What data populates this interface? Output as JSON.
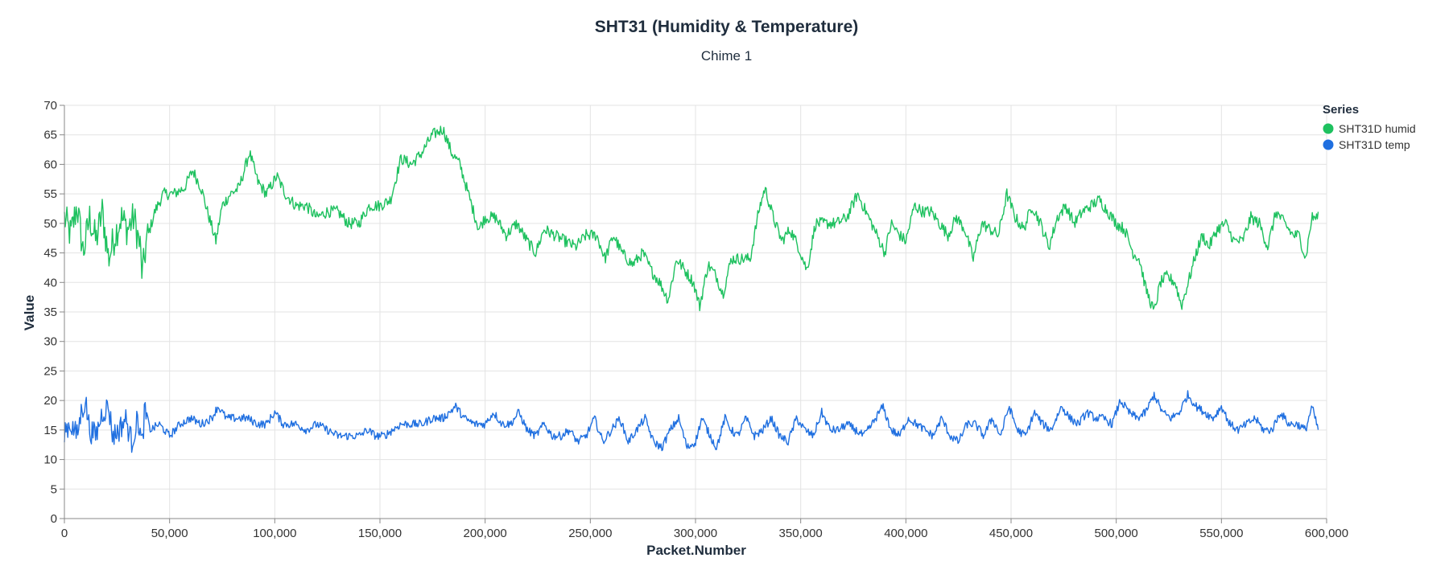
{
  "chart_data": {
    "type": "line",
    "title": "SHT31 (Humidity & Temperature)",
    "subtitle": "Chime 1",
    "xlabel": "Packet.Number",
    "ylabel": "Value",
    "xlim": [
      0,
      600000
    ],
    "ylim": [
      0,
      70
    ],
    "x_ticks": [
      0,
      50000,
      100000,
      150000,
      200000,
      250000,
      300000,
      350000,
      400000,
      450000,
      500000,
      550000,
      600000
    ],
    "x_tick_labels": [
      "0",
      "50,000",
      "100,000",
      "150,000",
      "200,000",
      "250,000",
      "300,000",
      "350,000",
      "400,000",
      "450,000",
      "500,000",
      "550,000",
      "600,000"
    ],
    "y_ticks": [
      0,
      5,
      10,
      15,
      20,
      25,
      30,
      35,
      40,
      45,
      50,
      55,
      60,
      65,
      70
    ],
    "y_tick_labels": [
      "0",
      "5",
      "10",
      "15",
      "20",
      "25",
      "30",
      "35",
      "40",
      "45",
      "50",
      "55",
      "60",
      "65",
      "70"
    ],
    "grid": true,
    "legend": {
      "title": "Series",
      "position": "top-right"
    },
    "series": [
      {
        "name": "SHT31D humid",
        "color": "#1ec15f",
        "noise": 1.0,
        "points": [
          [
            0,
            51
          ],
          [
            3000,
            48
          ],
          [
            6000,
            53
          ],
          [
            9000,
            45
          ],
          [
            12000,
            51
          ],
          [
            15000,
            47
          ],
          [
            18000,
            52
          ],
          [
            21000,
            44
          ],
          [
            24000,
            48
          ],
          [
            27000,
            51
          ],
          [
            30000,
            49
          ],
          [
            33000,
            51
          ],
          [
            36000,
            46
          ],
          [
            37000,
            41
          ],
          [
            39000,
            47
          ],
          [
            43000,
            52
          ],
          [
            47000,
            55
          ],
          [
            52000,
            55
          ],
          [
            57000,
            56
          ],
          [
            61000,
            59
          ],
          [
            65000,
            56
          ],
          [
            68000,
            52
          ],
          [
            72000,
            47
          ],
          [
            75000,
            53
          ],
          [
            79000,
            55
          ],
          [
            83000,
            56
          ],
          [
            88000,
            62
          ],
          [
            92000,
            57
          ],
          [
            96000,
            55
          ],
          [
            101000,
            58
          ],
          [
            105000,
            55
          ],
          [
            110000,
            53
          ],
          [
            115000,
            53
          ],
          [
            120000,
            51
          ],
          [
            125000,
            52
          ],
          [
            130000,
            52
          ],
          [
            135000,
            50
          ],
          [
            140000,
            50
          ],
          [
            145000,
            53
          ],
          [
            150000,
            53
          ],
          [
            155000,
            54
          ],
          [
            160000,
            61
          ],
          [
            165000,
            60
          ],
          [
            170000,
            62
          ],
          [
            175000,
            65
          ],
          [
            180000,
            66
          ],
          [
            184000,
            62
          ],
          [
            188000,
            60
          ],
          [
            192000,
            55
          ],
          [
            197000,
            49
          ],
          [
            200000,
            51
          ],
          [
            205000,
            51
          ],
          [
            210000,
            48
          ],
          [
            215000,
            50
          ],
          [
            220000,
            47
          ],
          [
            224000,
            45
          ],
          [
            228000,
            49
          ],
          [
            233000,
            48
          ],
          [
            238000,
            47
          ],
          [
            243000,
            46
          ],
          [
            248000,
            48
          ],
          [
            253000,
            48
          ],
          [
            257000,
            44
          ],
          [
            261000,
            48
          ],
          [
            265000,
            45
          ],
          [
            270000,
            43
          ],
          [
            275000,
            45
          ],
          [
            279000,
            42
          ],
          [
            283000,
            40
          ],
          [
            287000,
            37
          ],
          [
            291000,
            44
          ],
          [
            295000,
            42
          ],
          [
            299000,
            40
          ],
          [
            302000,
            36
          ],
          [
            306000,
            43
          ],
          [
            310000,
            41
          ],
          [
            313000,
            38
          ],
          [
            317000,
            44
          ],
          [
            321000,
            44
          ],
          [
            326000,
            44
          ],
          [
            330000,
            52
          ],
          [
            333000,
            56
          ],
          [
            337000,
            51
          ],
          [
            341000,
            47
          ],
          [
            345000,
            49
          ],
          [
            349000,
            46
          ],
          [
            353000,
            42
          ],
          [
            357000,
            50
          ],
          [
            362000,
            50
          ],
          [
            367000,
            50
          ],
          [
            372000,
            51
          ],
          [
            377000,
            55
          ],
          [
            381000,
            52
          ],
          [
            385000,
            49
          ],
          [
            390000,
            45
          ],
          [
            393000,
            50
          ],
          [
            397000,
            48
          ],
          [
            400000,
            47
          ],
          [
            404000,
            53
          ],
          [
            408000,
            52
          ],
          [
            412000,
            52
          ],
          [
            416000,
            50
          ],
          [
            420000,
            48
          ],
          [
            424000,
            51
          ],
          [
            428000,
            49
          ],
          [
            432000,
            44
          ],
          [
            436000,
            50
          ],
          [
            440000,
            49
          ],
          [
            444000,
            48
          ],
          [
            448000,
            55
          ],
          [
            452000,
            51
          ],
          [
            456000,
            49
          ],
          [
            460000,
            53
          ],
          [
            464000,
            50
          ],
          [
            468000,
            46
          ],
          [
            472000,
            51
          ],
          [
            476000,
            53
          ],
          [
            480000,
            50
          ],
          [
            484000,
            52
          ],
          [
            488000,
            53
          ],
          [
            492000,
            54
          ],
          [
            496000,
            52
          ],
          [
            500000,
            50
          ],
          [
            504000,
            49
          ],
          [
            508000,
            45
          ],
          [
            511000,
            44
          ],
          [
            514000,
            39
          ],
          [
            518000,
            35
          ],
          [
            521000,
            40
          ],
          [
            524000,
            41
          ],
          [
            528000,
            40
          ],
          [
            531000,
            36
          ],
          [
            535000,
            41
          ],
          [
            538000,
            45
          ],
          [
            541000,
            48
          ],
          [
            544000,
            46
          ],
          [
            548000,
            49
          ],
          [
            552000,
            50
          ],
          [
            556000,
            47
          ],
          [
            560000,
            47
          ],
          [
            564000,
            51
          ],
          [
            568000,
            50
          ],
          [
            572000,
            46
          ],
          [
            576000,
            52
          ],
          [
            580000,
            50
          ],
          [
            584000,
            48
          ],
          [
            587000,
            48
          ],
          [
            590000,
            44
          ],
          [
            593000,
            51
          ],
          [
            596000,
            51
          ]
        ]
      },
      {
        "name": "SHT31D temp",
        "color": "#1f6fe0",
        "noise": 0.7,
        "points": [
          [
            0,
            15
          ],
          [
            3000,
            16
          ],
          [
            6000,
            14
          ],
          [
            8000,
            18
          ],
          [
            10000,
            20
          ],
          [
            12000,
            15
          ],
          [
            15000,
            14
          ],
          [
            18000,
            18
          ],
          [
            21000,
            19
          ],
          [
            23000,
            14
          ],
          [
            26000,
            15
          ],
          [
            29000,
            17
          ],
          [
            32000,
            13
          ],
          [
            35000,
            17
          ],
          [
            37000,
            12
          ],
          [
            38000,
            18
          ],
          [
            41000,
            15
          ],
          [
            45000,
            16
          ],
          [
            50000,
            14
          ],
          [
            55000,
            16
          ],
          [
            60000,
            17
          ],
          [
            65000,
            16
          ],
          [
            70000,
            17
          ],
          [
            73000,
            19
          ],
          [
            77000,
            17
          ],
          [
            82000,
            17
          ],
          [
            87000,
            17
          ],
          [
            92000,
            16
          ],
          [
            96000,
            16
          ],
          [
            100000,
            18
          ],
          [
            104000,
            16
          ],
          [
            110000,
            16
          ],
          [
            115000,
            15
          ],
          [
            120000,
            16
          ],
          [
            125000,
            15
          ],
          [
            130000,
            14
          ],
          [
            135000,
            14
          ],
          [
            140000,
            14
          ],
          [
            144000,
            15
          ],
          [
            148000,
            14
          ],
          [
            152000,
            14
          ],
          [
            156000,
            15
          ],
          [
            160000,
            16
          ],
          [
            165000,
            16
          ],
          [
            170000,
            16
          ],
          [
            175000,
            17
          ],
          [
            180000,
            17
          ],
          [
            186000,
            19
          ],
          [
            190000,
            17
          ],
          [
            195000,
            16
          ],
          [
            200000,
            16
          ],
          [
            204000,
            18
          ],
          [
            208000,
            16
          ],
          [
            212000,
            16
          ],
          [
            216000,
            18
          ],
          [
            220000,
            15
          ],
          [
            224000,
            14
          ],
          [
            228000,
            16
          ],
          [
            232000,
            14
          ],
          [
            236000,
            14
          ],
          [
            240000,
            15
          ],
          [
            244000,
            13
          ],
          [
            248000,
            14
          ],
          [
            252000,
            17
          ],
          [
            256000,
            13
          ],
          [
            260000,
            15
          ],
          [
            264000,
            17
          ],
          [
            268000,
            13
          ],
          [
            272000,
            15
          ],
          [
            276000,
            17
          ],
          [
            280000,
            13
          ],
          [
            284000,
            12
          ],
          [
            288000,
            15
          ],
          [
            292000,
            17
          ],
          [
            296000,
            12
          ],
          [
            300000,
            13
          ],
          [
            303000,
            17
          ],
          [
            307000,
            14
          ],
          [
            310000,
            12
          ],
          [
            314000,
            17
          ],
          [
            317000,
            15
          ],
          [
            320000,
            14
          ],
          [
            324000,
            17
          ],
          [
            328000,
            14
          ],
          [
            332000,
            15
          ],
          [
            336000,
            17
          ],
          [
            340000,
            14
          ],
          [
            344000,
            13
          ],
          [
            348000,
            17
          ],
          [
            352000,
            15
          ],
          [
            356000,
            14
          ],
          [
            360000,
            18
          ],
          [
            364000,
            15
          ],
          [
            368000,
            15
          ],
          [
            372000,
            16
          ],
          [
            376000,
            15
          ],
          [
            380000,
            14
          ],
          [
            384000,
            16
          ],
          [
            389000,
            19
          ],
          [
            393000,
            15
          ],
          [
            397000,
            14
          ],
          [
            401000,
            17
          ],
          [
            405000,
            16
          ],
          [
            409000,
            15
          ],
          [
            413000,
            14
          ],
          [
            417000,
            17
          ],
          [
            421000,
            14
          ],
          [
            425000,
            13
          ],
          [
            429000,
            16
          ],
          [
            433000,
            16
          ],
          [
            437000,
            14
          ],
          [
            441000,
            17
          ],
          [
            445000,
            14
          ],
          [
            449000,
            19
          ],
          [
            453000,
            15
          ],
          [
            457000,
            14
          ],
          [
            461000,
            18
          ],
          [
            465000,
            16
          ],
          [
            469000,
            15
          ],
          [
            474000,
            19
          ],
          [
            478000,
            17
          ],
          [
            482000,
            16
          ],
          [
            486000,
            18
          ],
          [
            490000,
            17
          ],
          [
            494000,
            17
          ],
          [
            498000,
            16
          ],
          [
            502000,
            20
          ],
          [
            506000,
            18
          ],
          [
            510000,
            17
          ],
          [
            514000,
            18
          ],
          [
            518000,
            21
          ],
          [
            522000,
            18
          ],
          [
            526000,
            17
          ],
          [
            530000,
            18
          ],
          [
            534000,
            21
          ],
          [
            538000,
            19
          ],
          [
            542000,
            18
          ],
          [
            546000,
            17
          ],
          [
            550000,
            19
          ],
          [
            554000,
            16
          ],
          [
            558000,
            15
          ],
          [
            562000,
            16
          ],
          [
            566000,
            17
          ],
          [
            570000,
            15
          ],
          [
            574000,
            15
          ],
          [
            578000,
            18
          ],
          [
            582000,
            16
          ],
          [
            586000,
            16
          ],
          [
            590000,
            15
          ],
          [
            593000,
            19
          ],
          [
            596000,
            15
          ]
        ]
      }
    ]
  }
}
